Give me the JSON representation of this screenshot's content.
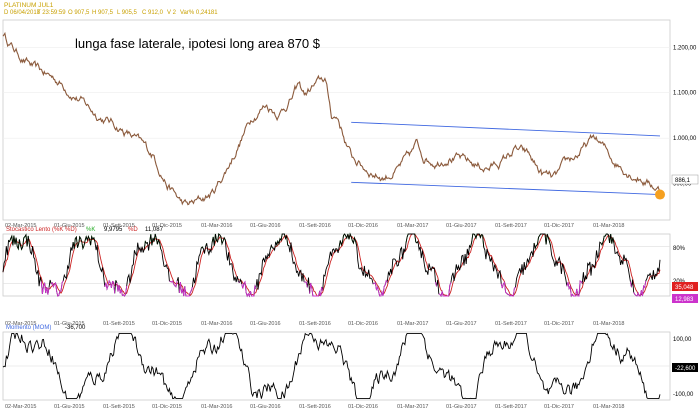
{
  "header": {
    "symbol": "PLATINUM JUL1",
    "date_label": "D 06/04/2018",
    "time_label": "T 23:59:59",
    "open_label": "O 907,5",
    "high_label": "H 907,5",
    "low_label": "L 905,5",
    "close_label": "C 912,0",
    "volume_label": "V 2",
    "var_label": "Var% 0,24181"
  },
  "annotation": "lunga fase laterale, ipotesi long area 870 $",
  "colors": {
    "price": "#8b5a3c",
    "channel": "#4169e1",
    "stoch_k": "#22aa22",
    "stoch_d": "#cc2222",
    "stoch_black": "#000000",
    "stoch_magenta": "#cc33cc",
    "momentum": "#000000",
    "highlight": "#f5a020",
    "last_price_badge": "#ffffff",
    "stoch_badge_red": "#e02020",
    "stoch_badge_magenta": "#cc33cc",
    "mom_badge": "#000000",
    "header_text": "#c8a000"
  },
  "x_ticks": [
    "02-Mar-2015",
    "01-Giu-2015",
    "01-Sett-2015",
    "01-Dic-2015",
    "01-Mar-2016",
    "01-Giu-2016",
    "01-Sett-2016",
    "01-Dic-2016",
    "01-Mar-2017",
    "01-Giu-2017",
    "01-Sett-2017",
    "01-Dic-2017",
    "01-Mar-2018"
  ],
  "stoch_header": {
    "title": "Stocastico Lento (%K %D)",
    "k_label": "%K",
    "k_value": "9,9795",
    "d_label": "%D",
    "d_value": "11,087"
  },
  "mom_header": {
    "title": "Momento (MOM)",
    "value": "-36,700"
  },
  "price_axis_labels": [
    "1.200,00",
    "1.100,00",
    "1.000,00",
    "900,00"
  ],
  "last_price_label": "886,1",
  "stoch_axis_labels": [
    "80%",
    "20%"
  ],
  "stoch_badges": [
    "35,048",
    "12,983"
  ],
  "mom_axis_labels": [
    "100,00",
    "-100,00"
  ],
  "mom_badge": "-22,600",
  "chart_data": {
    "type": "line",
    "price": {
      "xlim": [
        0,
        100
      ],
      "ylim": [
        820,
        1260
      ],
      "anchors": [
        [
          0,
          1230
        ],
        [
          2,
          1190
        ],
        [
          5,
          1150
        ],
        [
          8,
          1130
        ],
        [
          11,
          1095
        ],
        [
          14,
          1055
        ],
        [
          17,
          1030
        ],
        [
          20,
          1000
        ],
        [
          23,
          960
        ],
        [
          25,
          900
        ],
        [
          27,
          860
        ],
        [
          28,
          850
        ],
        [
          30,
          862
        ],
        [
          32,
          880
        ],
        [
          34,
          930
        ],
        [
          36,
          990
        ],
        [
          38,
          1050
        ],
        [
          40,
          1075
        ],
        [
          42,
          1055
        ],
        [
          44,
          1090
        ],
        [
          45,
          1115
        ],
        [
          46,
          1095
        ],
        [
          47,
          1110
        ],
        [
          49,
          1130
        ],
        [
          50,
          1050
        ],
        [
          51,
          1045
        ],
        [
          52,
          1000
        ],
        [
          53,
          960
        ],
        [
          55,
          935
        ],
        [
          57,
          920
        ],
        [
          58,
          915
        ],
        [
          60,
          930
        ],
        [
          62,
          960
        ],
        [
          63,
          985
        ],
        [
          64,
          960
        ],
        [
          66,
          950
        ],
        [
          68,
          965
        ],
        [
          70,
          950
        ],
        [
          72,
          940
        ],
        [
          74,
          935
        ],
        [
          76,
          950
        ],
        [
          78,
          975
        ],
        [
          80,
          960
        ],
        [
          82,
          920
        ],
        [
          84,
          910
        ],
        [
          86,
          945
        ],
        [
          88,
          970
        ],
        [
          89,
          985
        ],
        [
          90,
          1000
        ],
        [
          91,
          985
        ],
        [
          93,
          950
        ],
        [
          95,
          930
        ],
        [
          97,
          915
        ],
        [
          98,
          905
        ],
        [
          99,
          896
        ],
        [
          100,
          886
        ]
      ]
    },
    "channel": {
      "upper": [
        [
          53,
          1035
        ],
        [
          100,
          1005
        ]
      ],
      "lower": [
        [
          53,
          903
        ],
        [
          100,
          876
        ]
      ]
    },
    "stochastic": {
      "ylim": [
        0,
        100
      ],
      "levels": [
        20,
        80
      ]
    },
    "momentum": {
      "ylim": [
        -120,
        120
      ]
    }
  }
}
